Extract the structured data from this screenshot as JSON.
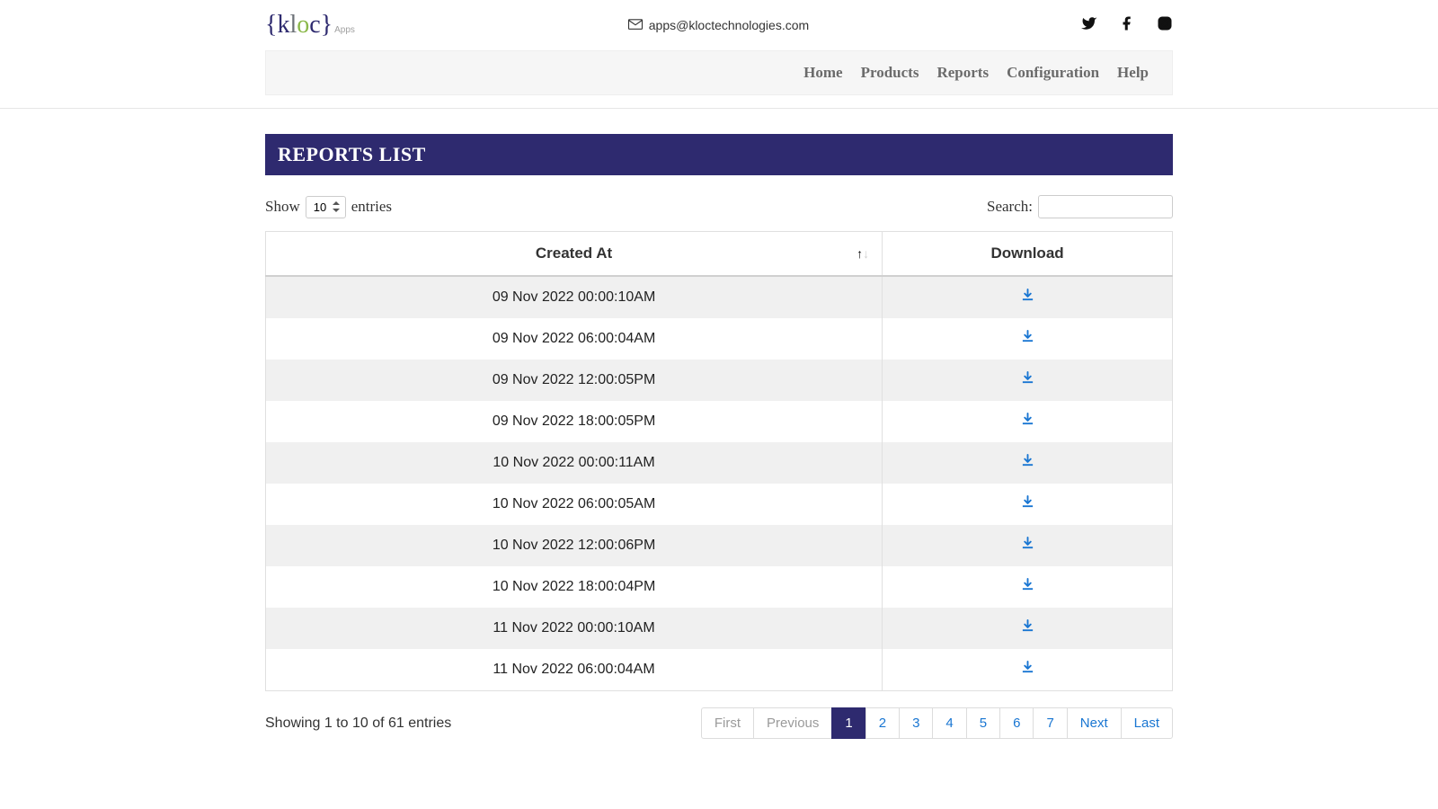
{
  "header": {
    "logo_text_parts": {
      "k": "k",
      "l": "l",
      "o": "o",
      "c": "c"
    },
    "logo_sub": "Apps",
    "contact_email": "apps@kloctechnologies.com"
  },
  "nav": {
    "items": [
      "Home",
      "Products",
      "Reports",
      "Configuration",
      "Help"
    ]
  },
  "page": {
    "title": "REPORTS LIST"
  },
  "table_controls": {
    "show_label_pre": "Show",
    "show_label_post": "entries",
    "show_value": "10",
    "search_label": "Search:",
    "search_value": ""
  },
  "table": {
    "columns": [
      {
        "label": "Created At",
        "sortable": true
      },
      {
        "label": "Download",
        "sortable": false
      }
    ],
    "rows": [
      {
        "created_at": "09 Nov 2022 00:00:10AM"
      },
      {
        "created_at": "09 Nov 2022 06:00:04AM"
      },
      {
        "created_at": "09 Nov 2022 12:00:05PM"
      },
      {
        "created_at": "09 Nov 2022 18:00:05PM"
      },
      {
        "created_at": "10 Nov 2022 00:00:11AM"
      },
      {
        "created_at": "10 Nov 2022 06:00:05AM"
      },
      {
        "created_at": "10 Nov 2022 12:00:06PM"
      },
      {
        "created_at": "10 Nov 2022 18:00:04PM"
      },
      {
        "created_at": "11 Nov 2022 00:00:10AM"
      },
      {
        "created_at": "11 Nov 2022 06:00:04AM"
      }
    ]
  },
  "footer": {
    "info": "Showing 1 to 10 of 61 entries"
  },
  "pagination": {
    "first": "First",
    "previous": "Previous",
    "pages": [
      "1",
      "2",
      "3",
      "4",
      "5",
      "6",
      "7"
    ],
    "active_index": 0,
    "next": "Next",
    "last": "Last"
  },
  "colors": {
    "brand_dark": "#2e2a6f",
    "link_blue": "#1976d2",
    "row_stripe": "#f0f0f0",
    "border": "#e0e0e0"
  }
}
